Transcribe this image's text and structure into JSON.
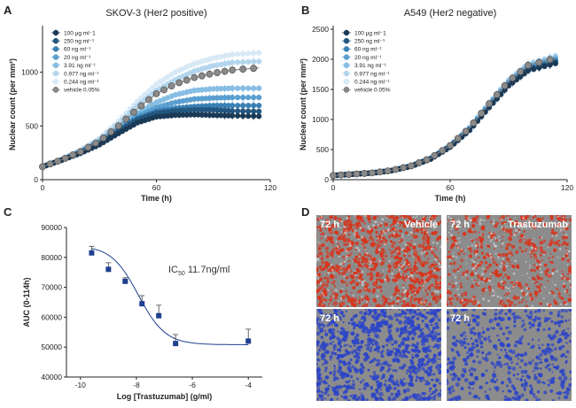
{
  "chart_data": [
    {
      "panel": "A",
      "type": "line",
      "title": "SKOV-3 (Her2 positive)",
      "xlabel": "Time (h)",
      "ylabel": "Nuclear count (per mm²)",
      "xlim": [
        0,
        120
      ],
      "ylim": [
        0,
        1400
      ],
      "xticks": [
        0,
        60,
        120
      ],
      "yticks": [
        0,
        500,
        1000
      ],
      "grid": false,
      "legend_position": "top-left",
      "x": [
        0,
        10,
        20,
        30,
        40,
        50,
        60,
        70,
        80,
        90,
        100,
        114
      ],
      "series": [
        {
          "name": "100 µg ml⁻1",
          "color": "#1b3a57",
          "values": [
            120,
            180,
            245,
            325,
            430,
            530,
            585,
            600,
            605,
            600,
            595,
            590
          ]
        },
        {
          "name": "250 ng ml⁻¹",
          "color": "#24577f",
          "values": [
            120,
            180,
            250,
            340,
            450,
            560,
            620,
            640,
            650,
            650,
            640,
            635
          ]
        },
        {
          "name": "60 ng ml⁻¹",
          "color": "#3a80b5",
          "values": [
            120,
            182,
            255,
            345,
            460,
            570,
            635,
            665,
            680,
            690,
            690,
            690
          ]
        },
        {
          "name": "20 ng ml⁻¹",
          "color": "#5a9fd0",
          "values": [
            120,
            185,
            258,
            350,
            470,
            590,
            670,
            720,
            750,
            760,
            765,
            765
          ]
        },
        {
          "name": "3.91 ng ml⁻¹",
          "color": "#86bde3",
          "values": [
            120,
            186,
            262,
            358,
            485,
            620,
            720,
            790,
            830,
            845,
            850,
            850
          ]
        },
        {
          "name": "0.977 ng ml⁻¹",
          "color": "#b3d6ee",
          "values": [
            120,
            188,
            270,
            375,
            520,
            690,
            830,
            930,
            1010,
            1060,
            1090,
            1100
          ]
        },
        {
          "name": "0.244 ng ml⁻¹",
          "color": "#d8e9f6",
          "values": [
            120,
            190,
            275,
            385,
            545,
            730,
            890,
            1000,
            1080,
            1130,
            1165,
            1180
          ]
        },
        {
          "name": "vehicle 0.05%",
          "color": "#8a8a8a",
          "values": [
            120,
            185,
            260,
            360,
            500,
            660,
            800,
            890,
            950,
            990,
            1020,
            1040
          ]
        }
      ]
    },
    {
      "panel": "B",
      "type": "line",
      "title": "A549 (Her2 negative)",
      "xlabel": "Time (h)",
      "ylabel": "Nuclear count (per mm²)",
      "xlim": [
        0,
        120
      ],
      "ylim": [
        0,
        2500
      ],
      "xticks": [
        0,
        60,
        120
      ],
      "yticks": [
        0,
        500,
        1000,
        1500,
        2000,
        2500
      ],
      "grid": false,
      "legend_position": "top-left",
      "x": [
        0,
        10,
        20,
        30,
        40,
        50,
        60,
        70,
        80,
        90,
        100,
        114
      ],
      "series": [
        {
          "name": "100 µg ml⁻1",
          "color": "#1b3a57",
          "values": [
            70,
            90,
            110,
            150,
            220,
            340,
            540,
            820,
            1200,
            1560,
            1810,
            1930
          ]
        },
        {
          "name": "250 ng ml⁻¹",
          "color": "#24577f",
          "values": [
            70,
            90,
            110,
            150,
            222,
            345,
            548,
            830,
            1215,
            1575,
            1830,
            1950
          ]
        },
        {
          "name": "60 ng ml⁻¹",
          "color": "#3a80b5",
          "values": [
            70,
            90,
            111,
            152,
            225,
            350,
            555,
            840,
            1230,
            1595,
            1850,
            1975
          ]
        },
        {
          "name": "20 ng ml⁻¹",
          "color": "#5a9fd0",
          "values": [
            70,
            91,
            112,
            153,
            227,
            352,
            560,
            850,
            1245,
            1615,
            1875,
            2000
          ]
        },
        {
          "name": "3.91 ng ml⁻¹",
          "color": "#86bde3",
          "values": [
            70,
            91,
            112,
            154,
            230,
            356,
            566,
            860,
            1260,
            1635,
            1900,
            2030
          ]
        },
        {
          "name": "0.977 ng ml⁻¹",
          "color": "#b3d6ee",
          "values": [
            70,
            92,
            113,
            155,
            232,
            360,
            572,
            868,
            1272,
            1650,
            1920,
            2050
          ]
        },
        {
          "name": "0.244 ng ml⁻¹",
          "color": "#d8e9f6",
          "values": [
            70,
            92,
            114,
            156,
            234,
            362,
            576,
            875,
            1280,
            1660,
            1935,
            2065
          ]
        },
        {
          "name": "vehicle 0.05%",
          "color": "#8a8a8a",
          "values": [
            70,
            91,
            112,
            154,
            230,
            358,
            568,
            862,
            1262,
            1635,
            1900,
            2020
          ]
        }
      ]
    },
    {
      "panel": "C",
      "type": "scatter",
      "title": "",
      "xlabel": "Log [Trastuzumab] (g/ml)",
      "ylabel": "AUC (0-114h)",
      "xlim": [
        -10.5,
        -3.5
      ],
      "ylim": [
        40000,
        90000
      ],
      "xticks": [
        -10,
        -8,
        -6,
        -4
      ],
      "yticks": [
        40000,
        50000,
        60000,
        70000,
        80000,
        90000
      ],
      "grid": false,
      "points": [
        {
          "x": -9.6,
          "y": 81500,
          "err": 2200
        },
        {
          "x": -9.0,
          "y": 76000,
          "err": 2200
        },
        {
          "x": -8.4,
          "y": 72000,
          "err": 1200
        },
        {
          "x": -7.8,
          "y": 64500,
          "err": 2700
        },
        {
          "x": -7.2,
          "y": 60500,
          "err": 3500
        },
        {
          "x": -6.6,
          "y": 51200,
          "err": 3000
        },
        {
          "x": -4.0,
          "y": 52000,
          "err": 4000
        }
      ],
      "fit": {
        "top": 84000,
        "bottom": 50800,
        "logIC50": -7.93,
        "hill": -0.9
      },
      "annotation": "IC50 11.7ng/ml"
    }
  ],
  "panels": {
    "A": {
      "letter": "A"
    },
    "B": {
      "letter": "B"
    },
    "C": {
      "letter": "C"
    },
    "D": {
      "letter": "D",
      "images": [
        {
          "time": "72 h",
          "label": "Vehicle",
          "stain": "red",
          "density": "high"
        },
        {
          "time": "72 h",
          "label": "Trastuzumab",
          "stain": "red",
          "density": "low"
        },
        {
          "time": "72 h",
          "label": "",
          "stain": "blue",
          "density": "high"
        },
        {
          "time": "72 h",
          "label": "",
          "stain": "blue",
          "density": "low"
        }
      ]
    }
  },
  "colors": {
    "axis": "#222222",
    "fit_line": "#1f3f8f",
    "red_stain": "#d8341c",
    "blue_stain": "#2b44c8",
    "micro_bg": "#8c8c8c"
  }
}
